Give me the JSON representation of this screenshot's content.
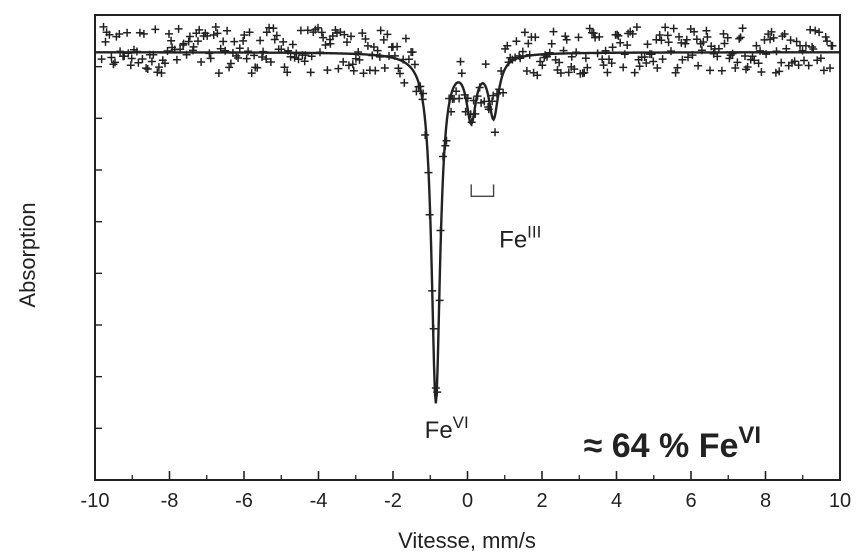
{
  "chart_data": {
    "type": "scatter",
    "title": "",
    "xlabel": "Vitesse, mm/s",
    "ylabel": "Absorption",
    "xlim": [
      -10,
      10
    ],
    "ylim": [
      0,
      1
    ],
    "x_ticks": [
      -10,
      -8,
      -6,
      -4,
      -2,
      0,
      2,
      4,
      6,
      8,
      10
    ],
    "x_tick_labels": [
      "-10",
      "-8",
      "-6",
      "-4",
      "-2",
      "0",
      "2",
      "4",
      "6",
      "8",
      "10"
    ],
    "y_tick_labels_shown": false,
    "grid": false,
    "baseline": 0.92,
    "fit_components": [
      {
        "species": "Fe VI",
        "center": -0.85,
        "depth": 0.75,
        "halfwidth": 0.14
      },
      {
        "species": "Fe III",
        "center": 0.1,
        "depth": 0.13,
        "halfwidth": 0.16
      },
      {
        "species": "Fe III",
        "center": 0.7,
        "depth": 0.13,
        "halfwidth": 0.16
      }
    ],
    "annotations": [
      {
        "base": "Fe",
        "sup": "VI",
        "x": -1.15,
        "y": 0.09
      },
      {
        "base": "Fe",
        "sup": "III",
        "x": 0.85,
        "y": 0.5
      },
      {
        "prefix": "≈ 64 % ",
        "base": "Fe",
        "sup": "VI",
        "x": 5.5,
        "y": 0.05
      }
    ],
    "doublet_marker": {
      "x1": 0.1,
      "x2": 0.7,
      "y": 0.61
    },
    "noise": {
      "scatter_amplitude": 0.05,
      "points": 380
    }
  }
}
